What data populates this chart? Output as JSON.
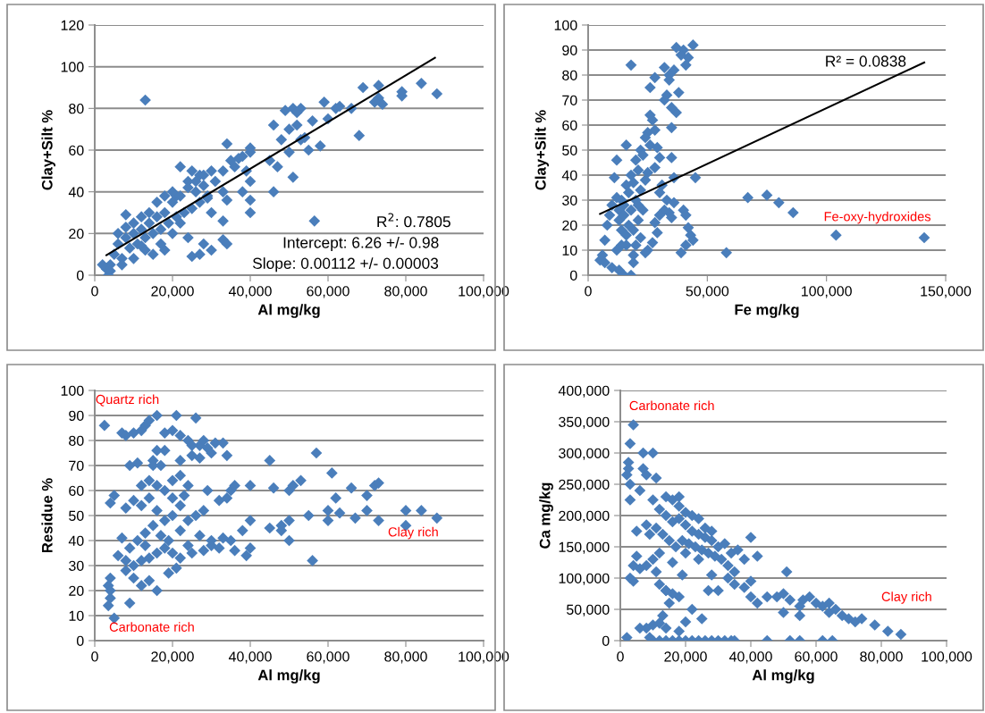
{
  "chart_data": [
    {
      "type": "scatter",
      "xlabel": "Al mg/kg",
      "ylabel": "Clay+Silt %",
      "grid": "y",
      "marker": "diamond",
      "legend": false,
      "xlim": [
        0,
        100000
      ],
      "xticks": [
        0,
        {
          "value": 20000,
          "label": "20,000"
        },
        {
          "value": 40000,
          "label": "40,000"
        },
        {
          "value": 60000,
          "label": "60,000"
        },
        {
          "value": 80000,
          "label": "80,000"
        },
        {
          "value": 100000,
          "label": "100,000"
        }
      ],
      "ylim": [
        0,
        120
      ],
      "yticks": [
        0,
        20,
        40,
        60,
        80,
        100,
        120
      ],
      "series": [
        {
          "color": "#4a7ebb",
          "x": [
            13000,
            56500,
            88000,
            84000,
            73000,
            69000,
            79000,
            79000,
            73000,
            74000,
            72000,
            66000,
            62000,
            63000,
            60000,
            56000,
            59000,
            53000,
            51000,
            52000,
            49000,
            46000,
            50000,
            52000,
            48000,
            53000,
            55000,
            54000,
            68000,
            58000,
            47000,
            50000,
            46000,
            51000,
            45000,
            40000,
            40000,
            38000,
            37000,
            34000,
            36000,
            39000,
            40000,
            40000,
            40000,
            38000,
            33000,
            34000,
            33000,
            33000,
            34000,
            30000,
            29000,
            28000,
            27000,
            25000,
            22000,
            24000,
            26000,
            21000,
            20000,
            18000,
            16000,
            14000,
            12000,
            10000,
            8000,
            6000,
            5000,
            4000,
            3000,
            3500,
            2000,
            4000,
            7000,
            9000,
            11000,
            13000,
            15000,
            17000,
            19000,
            21000,
            23000,
            25000,
            27000,
            29000,
            31000,
            33000,
            35000,
            30000,
            28000,
            26000,
            24000,
            22000,
            20000,
            18000,
            16000,
            14000,
            12000,
            10000,
            8000,
            6000,
            8000,
            12000,
            15000,
            18000,
            25000,
            27000,
            28000,
            30000,
            24000,
            22000,
            20000,
            17000,
            13000,
            10000,
            7000
          ],
          "values": [
            84,
            26,
            87,
            92,
            91,
            90,
            88,
            86,
            85,
            82,
            83,
            80,
            80,
            81,
            75,
            74,
            83,
            80,
            80,
            78,
            79,
            72,
            70,
            72,
            65,
            65,
            60,
            66,
            67,
            62,
            52,
            59,
            40,
            47,
            55,
            61,
            59,
            57,
            56,
            63,
            52,
            50,
            45,
            36,
            30,
            40,
            40,
            36,
            26,
            17,
            15,
            30,
            37,
            43,
            48,
            50,
            52,
            45,
            40,
            38,
            35,
            30,
            28,
            25,
            22,
            20,
            18,
            15,
            10,
            5,
            3,
            0,
            5,
            2,
            8,
            13,
            15,
            18,
            20,
            22,
            25,
            28,
            30,
            32,
            35,
            38,
            45,
            50,
            55,
            50,
            48,
            45,
            42,
            38,
            40,
            38,
            35,
            30,
            28,
            25,
            23,
            20,
            29,
            14,
            10,
            12,
            9,
            10,
            15,
            12,
            18,
            25,
            20,
            15,
            12,
            8,
            5
          ]
        },
        {
          "type": "line",
          "color": "#000000",
          "marker": "none",
          "x": [
            3000,
            87500
          ],
          "values": [
            9.6,
            104.3
          ]
        }
      ],
      "annotations": [
        "R$^{2}$: 0.7805",
        "Intercept: 6.26 +/- 0.98",
        "Slope: 0.00112 +/- 0.00003"
      ]
    },
    {
      "type": "scatter",
      "xlabel": "Fe mg/kg",
      "ylabel": "Clay+Silt %",
      "grid": "y",
      "marker": "diamond",
      "legend": false,
      "xlim": [
        0,
        150000
      ],
      "xticks": [
        0,
        {
          "value": 50000,
          "label": "50,000"
        },
        {
          "value": 100000,
          "label": "100,000"
        },
        {
          "value": 150000,
          "label": "150,000"
        }
      ],
      "ylim": [
        0,
        100
      ],
      "yticks": [
        0,
        10,
        20,
        30,
        40,
        50,
        60,
        70,
        80,
        90,
        100
      ],
      "series": [
        {
          "color": "#4a7ebb",
          "x": [
            141000,
            104000,
            86000,
            80000,
            75000,
            67000,
            58000,
            45000,
            44000,
            42000,
            41000,
            40000,
            39000,
            37000,
            38000,
            40000,
            41000,
            42000,
            43000,
            44000,
            41000,
            39000,
            37000,
            36000,
            34000,
            32000,
            34000,
            33000,
            32000,
            35000,
            35000,
            35000,
            36000,
            33000,
            34000,
            32000,
            35000,
            36000,
            28000,
            27000,
            26000,
            25000,
            24000,
            26000,
            29000,
            30000,
            28000,
            31000,
            30000,
            30000,
            28000,
            29000,
            27000,
            25000,
            24000,
            22000,
            26000,
            28000,
            18000,
            16000,
            12000,
            11000,
            12000,
            10000,
            9000,
            8000,
            7000,
            6000,
            5000,
            7000,
            10000,
            13000,
            15000,
            18000,
            19000,
            19000,
            16000,
            14000,
            13000,
            15000,
            17000,
            19000,
            21000,
            20000,
            22000,
            23000,
            18000,
            16000,
            14000,
            13000,
            15000,
            17000,
            19000,
            21000,
            23000,
            20000,
            22000,
            24000,
            25000,
            21000,
            18000,
            16000,
            14000,
            12000,
            20000
          ],
          "values": [
            15,
            16,
            25,
            29,
            32,
            31,
            9,
            39,
            92,
            87,
            84,
            90,
            88,
            91,
            73,
            26,
            24,
            19,
            16,
            14,
            12,
            9,
            65,
            82,
            80,
            83,
            78,
            72,
            70,
            67,
            59,
            47,
            39,
            30,
            25,
            26,
            23,
            29,
            58,
            62,
            64,
            57,
            55,
            52,
            51,
            47,
            43,
            36,
            33,
            24,
            21,
            17,
            13,
            10,
            9,
            15,
            75,
            79,
            84,
            52,
            46,
            39,
            31,
            28,
            24,
            20,
            14,
            8,
            6,
            5,
            3,
            2,
            0,
            0,
            5,
            8,
            12,
            18,
            22,
            28,
            33,
            37,
            42,
            46,
            50,
            48,
            40,
            36,
            30,
            26,
            24,
            20,
            18,
            22,
            26,
            30,
            34,
            38,
            41,
            28,
            26,
            16,
            12,
            10,
            12
          ]
        },
        {
          "type": "line",
          "color": "#000000",
          "marker": "none",
          "x": [
            5000,
            141000
          ],
          "values": [
            24.5,
            85
          ]
        }
      ],
      "annotations": [
        "R² = 0.0838",
        "Fe-oxy-hydroxides"
      ]
    },
    {
      "type": "scatter",
      "xlabel": "Al mg/kg",
      "ylabel": "Residue %",
      "grid": "y",
      "marker": "diamond",
      "legend": false,
      "xlim": [
        0,
        100000
      ],
      "xticks": [
        0,
        {
          "value": 20000,
          "label": "20,000"
        },
        {
          "value": 40000,
          "label": "40,000"
        },
        {
          "value": 60000,
          "label": "60,000"
        },
        {
          "value": 80000,
          "label": "80,000"
        },
        {
          "value": 100000,
          "label": "100,000"
        }
      ],
      "ylim": [
        0,
        100
      ],
      "yticks": [
        0,
        10,
        20,
        30,
        40,
        50,
        60,
        70,
        80,
        90,
        100
      ],
      "series": [
        {
          "color": "#4a7ebb",
          "x": [
            2500,
            7000,
            8000,
            10000,
            12000,
            13000,
            14000,
            16000,
            21000,
            26000,
            18000,
            20000,
            22000,
            24000,
            25000,
            27000,
            28000,
            29000,
            31000,
            33000,
            34000,
            30000,
            27000,
            25000,
            22000,
            18000,
            16000,
            15000,
            17000,
            20000,
            22000,
            24000,
            23000,
            22000,
            20000,
            18000,
            16000,
            14000,
            12000,
            9000,
            11000,
            15000,
            8000,
            5000,
            4000,
            10000,
            12000,
            14000,
            16000,
            18000,
            20000,
            22000,
            24000,
            26000,
            28000,
            29000,
            32000,
            34000,
            35000,
            36000,
            40000,
            45000,
            46000,
            50000,
            51000,
            53000,
            57000,
            61000,
            66000,
            70000,
            72000,
            73000,
            62000,
            60000,
            55000,
            50000,
            48000,
            45000,
            48000,
            50000,
            56000,
            60000,
            67000,
            63000,
            70000,
            73000,
            80000,
            84000,
            80000,
            88000,
            40000,
            38000,
            35000,
            33000,
            36000,
            39000,
            40000,
            30000,
            28000,
            25000,
            22000,
            20000,
            18000,
            16000,
            14000,
            12000,
            10000,
            8000,
            6000,
            8000,
            10000,
            12000,
            14000,
            16000,
            19000,
            21000,
            24000,
            27000,
            30000,
            32000,
            11000,
            13000,
            15000,
            9000,
            7000,
            4000,
            3500,
            4000,
            3500,
            4000,
            5000,
            9000,
            13000,
            17000,
            19000
          ],
          "values": [
            86,
            83,
            82,
            83,
            84,
            86,
            88,
            90,
            90,
            89,
            83,
            84,
            82,
            80,
            78,
            78,
            80,
            77,
            79,
            79,
            74,
            75,
            73,
            74,
            72,
            76,
            76,
            72,
            70,
            64,
            66,
            62,
            58,
            54,
            57,
            60,
            62,
            64,
            62,
            70,
            71,
            70,
            53,
            58,
            55,
            56,
            54,
            57,
            52,
            48,
            50,
            44,
            48,
            50,
            52,
            60,
            56,
            57,
            60,
            62,
            62,
            72,
            61,
            60,
            62,
            64,
            75,
            67,
            61,
            58,
            62,
            63,
            57,
            52,
            50,
            48,
            46,
            45,
            44,
            40,
            32,
            48,
            49,
            51,
            52,
            48,
            52,
            52,
            46,
            49,
            48,
            44,
            40,
            41,
            36,
            34,
            37,
            38,
            36,
            35,
            33,
            35,
            37,
            35,
            33,
            32,
            30,
            32,
            34,
            28,
            25,
            22,
            24,
            20,
            27,
            29,
            38,
            42,
            40,
            37,
            40,
            43,
            46,
            37,
            41,
            25,
            22,
            17,
            14,
            20,
            9,
            15,
            38,
            42,
            40
          ]
        }
      ],
      "annotations": [
        "Quartz rich",
        "Clay rich",
        "Carbonate rich"
      ]
    },
    {
      "type": "scatter",
      "xlabel": "Al mg/kg",
      "ylabel": "Ca mg/kg",
      "grid": "y",
      "marker": "diamond",
      "legend": false,
      "xlim": [
        0,
        100000
      ],
      "xticks": [
        0,
        {
          "value": 20000,
          "label": "20,000"
        },
        {
          "value": 40000,
          "label": "40,000"
        },
        {
          "value": 60000,
          "label": "60,000"
        },
        {
          "value": 80000,
          "label": "80,000"
        },
        {
          "value": 100000,
          "label": "100,000"
        }
      ],
      "ylim": [
        0,
        400000
      ],
      "yticks": [
        0,
        {
          "value": 50000,
          "label": "50,000"
        },
        {
          "value": 100000,
          "label": "100,000"
        },
        {
          "value": 150000,
          "label": "150,000"
        },
        {
          "value": 200000,
          "label": "200,000"
        },
        {
          "value": 250000,
          "label": "250,000"
        },
        {
          "value": 300000,
          "label": "300,000"
        },
        {
          "value": 350000,
          "label": "350,000"
        },
        {
          "value": 400000,
          "label": "400,000"
        }
      ],
      "series": [
        {
          "color": "#4a7ebb",
          "x": [
            4000,
            3000,
            10000,
            2500,
            2500,
            2000,
            3000,
            7000,
            8000,
            11000,
            2000,
            10000,
            12000,
            14000,
            16000,
            18000,
            20000,
            22000,
            24000,
            26000,
            28000,
            30000,
            32000,
            34000,
            35000,
            45000,
            52000,
            55000,
            62000,
            65000,
            12000,
            14000,
            16000,
            15000,
            18000,
            22000,
            25000,
            27000,
            30000,
            33000,
            35000,
            38000,
            40000,
            40000,
            42000,
            45000,
            48000,
            50000,
            52000,
            55000,
            56000,
            58000,
            60000,
            62000,
            64000,
            64000,
            66000,
            68000,
            70000,
            72000,
            74000,
            78000,
            82000,
            86000,
            51000,
            50000,
            55000,
            8000,
            10000,
            12000,
            14000,
            18000,
            20000,
            13000,
            6000,
            9000,
            5000,
            8000,
            10000,
            12000,
            14000,
            16000,
            18000,
            20000,
            22000,
            24000,
            26000,
            28000,
            30000,
            32000,
            34000,
            36000,
            38000,
            40000,
            42000,
            9000,
            11000,
            13000,
            15000,
            17000,
            19000,
            21000,
            23000,
            25000,
            27000,
            29000,
            31000,
            33000,
            35000,
            14000,
            16000,
            18000,
            20000,
            22000,
            24000,
            26000,
            28000,
            12000,
            10000,
            8000,
            6000,
            4000,
            5000,
            11000,
            16000,
            20000,
            24000,
            3000,
            4000,
            14000,
            19000,
            28000,
            3000,
            6000,
            18000,
            7000
          ],
          "values": [
            345000,
            315000,
            300000,
            285000,
            275000,
            265000,
            250000,
            275000,
            265000,
            260000,
            5000,
            0,
            0,
            0,
            0,
            0,
            0,
            0,
            0,
            0,
            0,
            0,
            0,
            0,
            0,
            0,
            0,
            0,
            0,
            0,
            90000,
            80000,
            75000,
            60000,
            70000,
            50000,
            35000,
            80000,
            80000,
            100000,
            90000,
            85000,
            95000,
            70000,
            60000,
            70000,
            70000,
            75000,
            65000,
            55000,
            65000,
            70000,
            60000,
            55000,
            60000,
            45000,
            50000,
            40000,
            35000,
            30000,
            35000,
            25000,
            15000,
            10000,
            110000,
            45000,
            40000,
            20000,
            25000,
            28000,
            20000,
            15000,
            30000,
            40000,
            20000,
            5000,
            175000,
            185000,
            225000,
            210000,
            200000,
            190000,
            195000,
            185000,
            175000,
            170000,
            165000,
            160000,
            150000,
            155000,
            140000,
            145000,
            130000,
            165000,
            135000,
            170000,
            180000,
            170000,
            160000,
            150000,
            160000,
            155000,
            150000,
            145000,
            140000,
            135000,
            130000,
            120000,
            110000,
            230000,
            225000,
            215000,
            205000,
            200000,
            195000,
            180000,
            175000,
            140000,
            130000,
            120000,
            115000,
            120000,
            135000,
            110000,
            125000,
            140000,
            130000,
            100000,
            95000,
            80000,
            105000,
            105000,
            225000,
            240000,
            230000,
            300000
          ]
        }
      ],
      "annotations": [
        "Carbonate rich",
        "Clay rich"
      ]
    }
  ]
}
